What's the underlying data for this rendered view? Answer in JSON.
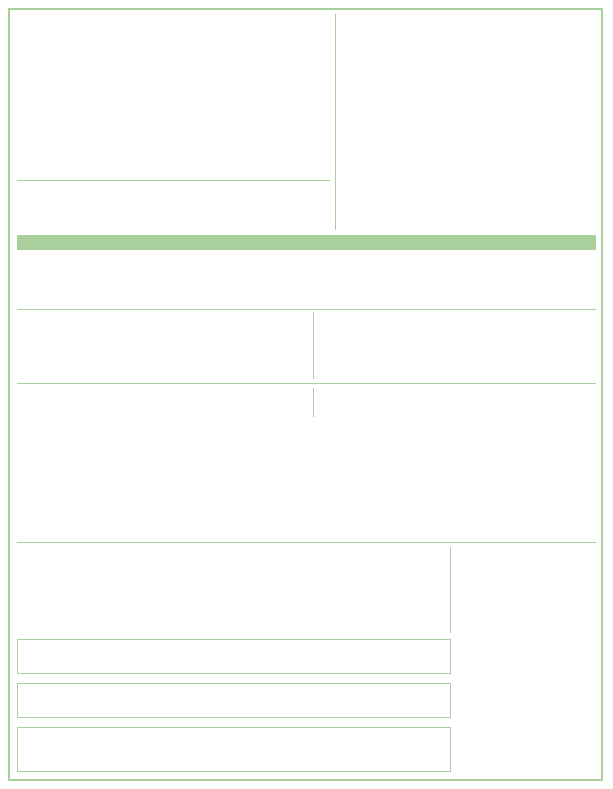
{
  "document": {
    "border_color": "#a8cf9c",
    "band_color": "#a8cf9c",
    "header_left": "",
    "header_right": "",
    "header_bottom_left": "",
    "band_text": "",
    "section1": "",
    "row2_left": "",
    "row2_right": "",
    "row3_left": "",
    "row3_right": "",
    "section4_left": "",
    "section4_right": "",
    "boxes": [
      "",
      "",
      ""
    ]
  }
}
